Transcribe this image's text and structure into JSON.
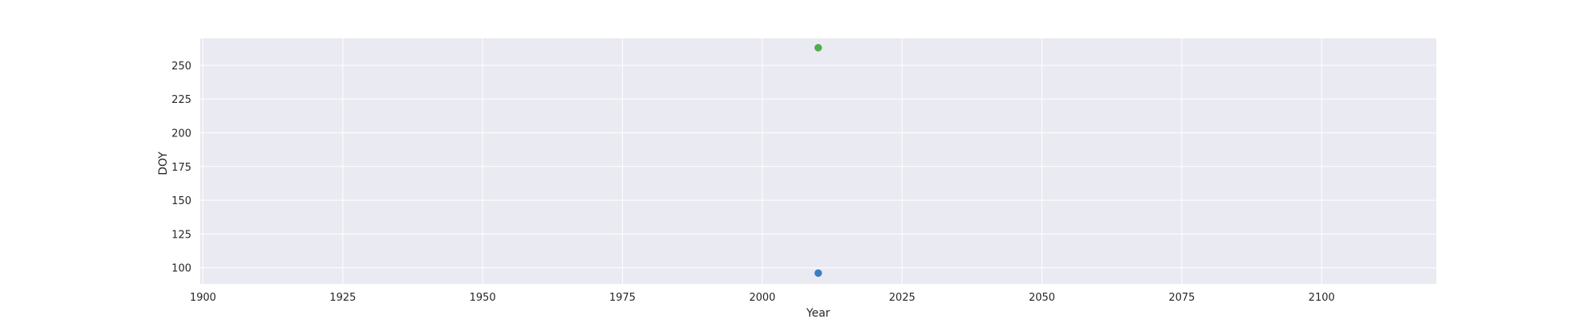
{
  "chart_data": {
    "type": "scatter",
    "xlabel": "Year",
    "ylabel": "DOY",
    "xlim": [
      1899.5,
      2120.5
    ],
    "ylim": [
      88,
      270
    ],
    "xticks": [
      1900,
      1925,
      1950,
      1975,
      2000,
      2025,
      2050,
      2075,
      2100
    ],
    "yticks": [
      100,
      125,
      150,
      175,
      200,
      225,
      250
    ],
    "grid": true,
    "legend": "none",
    "colors": {
      "plot_background": "#eaeaf2",
      "gridline": "#ffffff",
      "text": "#262626"
    },
    "series": [
      {
        "x": [
          2010
        ],
        "y": [
          96
        ],
        "color": "#3a7dc3"
      },
      {
        "x": [
          2010
        ],
        "y": [
          263
        ],
        "color": "#4cae49"
      }
    ]
  }
}
